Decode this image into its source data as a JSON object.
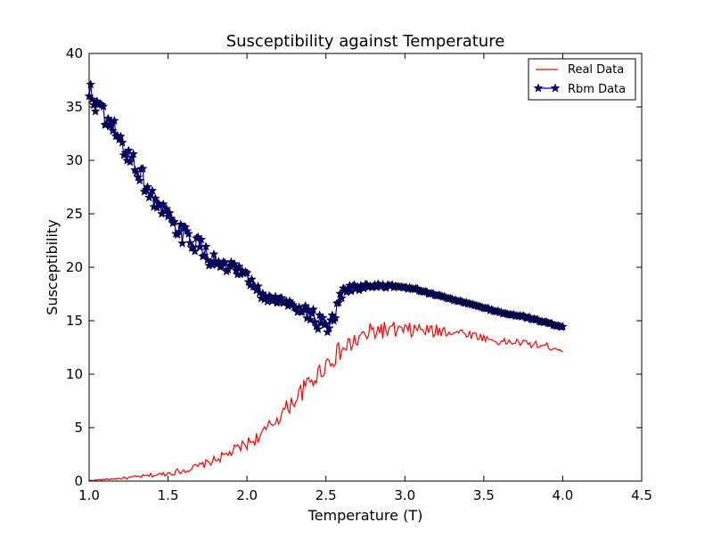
{
  "chart_data": {
    "type": "line",
    "title": "Susceptibility against Temperature",
    "xlabel": "Temperature (T)",
    "ylabel": "Susceptibility",
    "xlim": [
      1.0,
      4.5
    ],
    "ylim": [
      0,
      40
    ],
    "xticks": [
      "1.0",
      "1.5",
      "2.0",
      "2.5",
      "3.0",
      "3.5",
      "4.0",
      "4.5"
    ],
    "yticks": [
      "0",
      "5",
      "10",
      "15",
      "20",
      "25",
      "30",
      "35",
      "40"
    ],
    "grid": false,
    "legend_position": "top-right",
    "series": [
      {
        "name": "Real Data",
        "color": "#ff0000",
        "marker": "none",
        "x": [
          1.0,
          1.05,
          1.1,
          1.15,
          1.2,
          1.25,
          1.3,
          1.35,
          1.4,
          1.45,
          1.5,
          1.55,
          1.6,
          1.65,
          1.7,
          1.75,
          1.8,
          1.85,
          1.9,
          1.95,
          2.0,
          2.05,
          2.1,
          2.15,
          2.2,
          2.25,
          2.3,
          2.35,
          2.4,
          2.45,
          2.5,
          2.55,
          2.6,
          2.65,
          2.7,
          2.75,
          2.8,
          2.85,
          2.9,
          2.95,
          3.0,
          3.05,
          3.1,
          3.15,
          3.2,
          3.25,
          3.3,
          3.35,
          3.4,
          3.45,
          3.5,
          3.55,
          3.6,
          3.65,
          3.7,
          3.75,
          3.8,
          3.85,
          3.9,
          3.95,
          4.0
        ],
        "y": [
          0.05,
          0.1,
          0.15,
          0.2,
          0.25,
          0.3,
          0.4,
          0.45,
          0.55,
          0.6,
          0.75,
          0.85,
          1.0,
          1.2,
          1.4,
          1.7,
          2.0,
          2.3,
          2.7,
          3.1,
          3.5,
          3.9,
          4.4,
          5.2,
          6.0,
          6.8,
          7.6,
          8.4,
          9.3,
          10.0,
          11.0,
          11.6,
          12.2,
          12.7,
          13.2,
          13.6,
          14.0,
          14.2,
          14.0,
          14.1,
          14.0,
          14.1,
          14.2,
          14.0,
          14.0,
          14.1,
          14.0,
          13.9,
          13.8,
          13.6,
          13.4,
          13.2,
          13.0,
          13.0,
          13.0,
          12.9,
          12.8,
          12.7,
          12.6,
          12.5,
          12.3
        ],
        "noise": [
          0.02,
          0.04,
          0.06,
          0.08,
          0.1,
          0.12,
          0.15,
          0.17,
          0.2,
          0.22,
          0.25,
          0.28,
          0.3,
          0.33,
          0.35,
          0.38,
          0.4,
          0.45,
          0.5,
          0.55,
          0.6,
          0.6,
          0.65,
          0.7,
          0.75,
          0.8,
          0.85,
          0.9,
          0.95,
          1.0,
          1.0,
          1.0,
          1.0,
          1.0,
          1.0,
          1.0,
          0.9,
          0.9,
          0.9,
          0.85,
          0.8,
          0.75,
          0.7,
          0.7,
          0.65,
          0.6,
          0.55,
          0.5,
          0.45,
          0.4,
          0.35,
          0.35,
          0.35,
          0.35,
          0.35,
          0.35,
          0.35,
          0.35,
          0.35,
          0.35,
          0.35
        ]
      },
      {
        "name": "Rbm Data",
        "color": "#0000cd",
        "marker": "star",
        "marker_fill": "#000080",
        "x": [
          1.0,
          1.05,
          1.1,
          1.15,
          1.2,
          1.25,
          1.3,
          1.35,
          1.4,
          1.45,
          1.5,
          1.55,
          1.6,
          1.65,
          1.7,
          1.75,
          1.8,
          1.85,
          1.9,
          1.95,
          2.0,
          2.05,
          2.1,
          2.15,
          2.2,
          2.25,
          2.3,
          2.35,
          2.4,
          2.45,
          2.5,
          2.55,
          2.6,
          2.65,
          2.7,
          2.75,
          2.8,
          2.85,
          2.9,
          2.95,
          3.0,
          3.05,
          3.1,
          3.15,
          3.2,
          3.25,
          3.3,
          3.35,
          3.4,
          3.45,
          3.5,
          3.55,
          3.6,
          3.65,
          3.7,
          3.75,
          3.8,
          3.85,
          3.9,
          3.95,
          4.0
        ],
        "y": [
          36.0,
          35.5,
          33.5,
          33.0,
          31.5,
          30.5,
          29.5,
          28.0,
          26.5,
          25.5,
          24.5,
          23.5,
          23.0,
          22.5,
          22.0,
          21.0,
          20.5,
          20.0,
          19.8,
          19.5,
          19.0,
          18.0,
          17.3,
          17.0,
          17.0,
          16.5,
          16.5,
          16.2,
          15.5,
          15.0,
          14.0,
          15.0,
          17.5,
          18.0,
          18.1,
          18.2,
          18.3,
          18.3,
          18.2,
          18.2,
          18.1,
          18.0,
          17.8,
          17.6,
          17.4,
          17.2,
          17.0,
          16.8,
          16.6,
          16.4,
          16.2,
          16.0,
          15.8,
          15.6,
          15.5,
          15.4,
          15.2,
          15.0,
          14.8,
          14.6,
          14.4
        ],
        "noise": [
          1.6,
          1.5,
          1.4,
          1.2,
          1.1,
          1.0,
          1.0,
          1.0,
          1.0,
          1.0,
          0.9,
          0.9,
          0.9,
          0.9,
          0.8,
          0.8,
          0.7,
          0.7,
          0.7,
          0.7,
          0.6,
          0.6,
          0.6,
          0.6,
          0.6,
          0.6,
          0.6,
          0.7,
          0.8,
          0.9,
          0.9,
          0.8,
          0.5,
          0.35,
          0.3,
          0.3,
          0.25,
          0.2,
          0.18,
          0.15,
          0.12,
          0.1,
          0.1,
          0.1,
          0.08,
          0.08,
          0.08,
          0.08,
          0.08,
          0.08,
          0.08,
          0.08,
          0.08,
          0.08,
          0.08,
          0.08,
          0.08,
          0.08,
          0.08,
          0.08,
          0.08
        ]
      }
    ]
  }
}
